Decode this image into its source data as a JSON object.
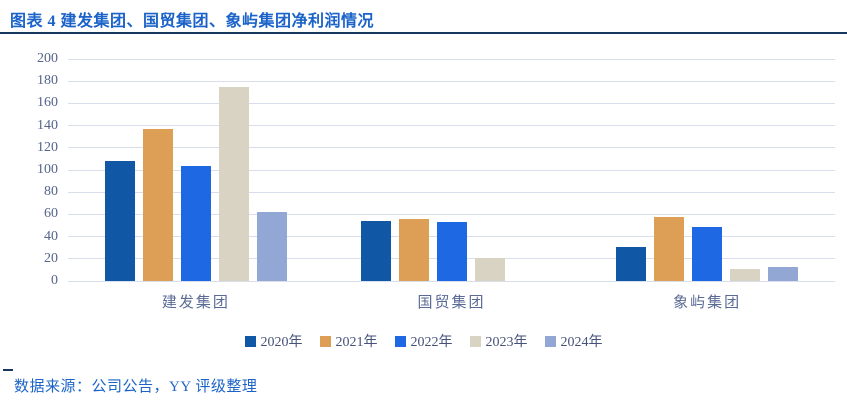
{
  "page": {
    "title": "图表 4 建发集团、国贸集团、象屿集团净利润情况",
    "source_note": "数据来源：公司公告，YY 评级整理"
  },
  "colors": {
    "title_text": "#1B63C8",
    "title_rule": "#17375E",
    "axis_label": "#55648C",
    "category_label": "#5A6A94",
    "gridline": "#D9DEEC",
    "legend_text": "#45527A",
    "source_text": "#1B63C8",
    "source_dash": "#17375E",
    "background": "#FFFFFF"
  },
  "chart_data": {
    "type": "bar",
    "title": "图表 4 建发集团、国贸集团、象屿集团净利润情况",
    "categories": [
      "建发集团",
      "国贸集团",
      "象屿集团"
    ],
    "series": [
      {
        "name": "2020年",
        "color": "#1057A5",
        "values": [
          108,
          54,
          31
        ]
      },
      {
        "name": "2021年",
        "color": "#DC9F55",
        "values": [
          137,
          56,
          58
        ]
      },
      {
        "name": "2022年",
        "color": "#1E68E4",
        "values": [
          104,
          53,
          49
        ]
      },
      {
        "name": "2023年",
        "color": "#D9D3C3",
        "values": [
          175,
          21,
          11
        ]
      },
      {
        "name": "2024年",
        "color": "#92A7D3",
        "values": [
          62,
          null,
          13
        ]
      }
    ],
    "xlabel": "",
    "ylabel": "",
    "ylim": [
      0,
      200
    ],
    "yticks": [
      0,
      20,
      40,
      60,
      80,
      100,
      120,
      140,
      160,
      180,
      200
    ],
    "grid": true,
    "legend_position": "bottom"
  }
}
